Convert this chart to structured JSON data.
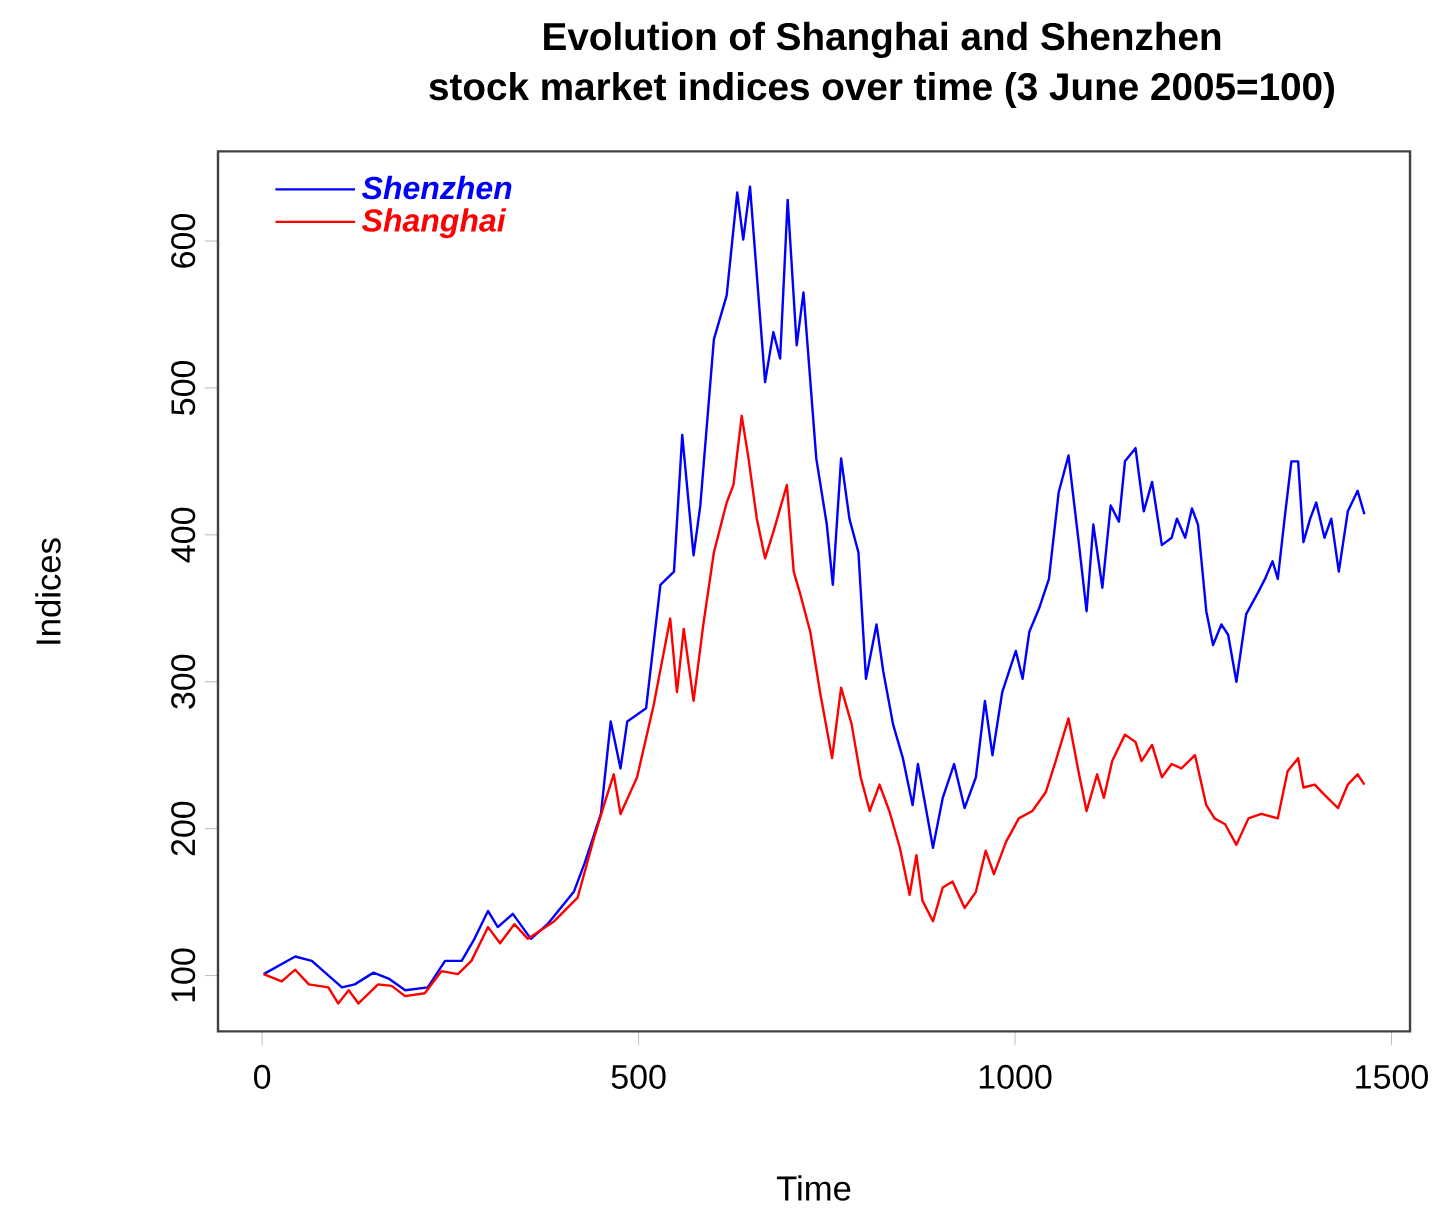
{
  "chart_data": {
    "type": "line",
    "title": "Evolution of Shanghai and Shenzhen",
    "subtitle": "stock market indices over time (3 June 2005=100)",
    "xlabel": "Time",
    "ylabel": "Indices",
    "xlim": [
      -58.6,
      1524.6
    ],
    "ylim": [
      62,
      661
    ],
    "xticks": [
      0,
      500,
      1000,
      1500
    ],
    "yticks": [
      100,
      200,
      300,
      400,
      500,
      600
    ],
    "legend": "top left",
    "marker": "none",
    "line_style": "solid",
    "series": [
      {
        "name": "Shenzhen",
        "color": "#0000ff",
        "x": [
          2,
          44,
          66,
          106,
          123,
          148,
          168,
          190,
          220,
          243,
          265,
          282,
          300,
          313,
          333,
          357,
          379,
          414,
          428,
          450,
          463,
          476,
          485,
          510,
          529,
          547,
          558,
          573,
          582,
          600,
          617,
          631,
          639,
          648,
          668,
          679,
          688,
          698,
          710,
          719,
          736,
          750,
          758,
          769,
          780,
          792,
          802,
          816,
          825,
          838,
          851,
          864,
          871,
          891,
          904,
          919,
          933,
          948,
          960,
          970,
          983,
          1001,
          1010,
          1019,
          1032,
          1045,
          1058,
          1071,
          1085,
          1095,
          1104,
          1116,
          1127,
          1138,
          1146,
          1160,
          1171,
          1182,
          1195,
          1208,
          1215,
          1226,
          1235,
          1243,
          1254,
          1263,
          1274,
          1283,
          1294,
          1307,
          1323,
          1332,
          1342,
          1349,
          1358,
          1367,
          1376,
          1383,
          1392,
          1400,
          1411,
          1420,
          1430,
          1442,
          1455,
          1464
        ],
        "values": [
          101,
          113,
          110,
          92,
          94,
          102,
          98,
          90,
          92,
          110,
          110,
          125,
          144,
          133,
          142,
          125,
          135,
          157,
          176,
          210,
          273,
          241,
          273,
          282,
          366,
          375,
          468,
          386,
          420,
          533,
          563,
          633,
          601,
          637,
          504,
          538,
          520,
          628,
          529,
          565,
          452,
          407,
          366,
          452,
          411,
          388,
          302,
          339,
          307,
          271,
          248,
          216,
          244,
          187,
          221,
          244,
          214,
          235,
          287,
          250,
          293,
          321,
          302,
          334,
          350,
          370,
          429,
          454,
          393,
          348,
          407,
          364,
          420,
          409,
          450,
          459,
          416,
          436,
          393,
          398,
          411,
          398,
          418,
          407,
          348,
          325,
          339,
          332,
          300,
          346,
          361,
          370,
          382,
          370,
          411,
          450,
          450,
          395,
          411,
          422,
          398,
          411,
          375,
          416,
          430,
          414
        ]
      },
      {
        "name": "Shanghai",
        "color": "#ff0000",
        "x": [
          2,
          26,
          44,
          62,
          88,
          101,
          115,
          128,
          154,
          172,
          190,
          216,
          238,
          260,
          278,
          300,
          316,
          335,
          353,
          388,
          419,
          441,
          457,
          467,
          476,
          498,
          520,
          542,
          551,
          560,
          573,
          586,
          600,
          617,
          626,
          637,
          646,
          657,
          668,
          679,
          697,
          706,
          714,
          728,
          741,
          757,
          769,
          783,
          795,
          807,
          820,
          833,
          847,
          860,
          869,
          877,
          891,
          904,
          917,
          933,
          948,
          961,
          972,
          988,
          1005,
          1023,
          1041,
          1054,
          1071,
          1085,
          1095,
          1109,
          1118,
          1129,
          1146,
          1160,
          1168,
          1182,
          1195,
          1208,
          1221,
          1239,
          1254,
          1265,
          1279,
          1294,
          1310,
          1327,
          1349,
          1362,
          1376,
          1383,
          1398,
          1411,
          1429,
          1442,
          1455,
          1464
        ],
        "values": [
          101,
          96,
          104,
          94,
          92,
          81,
          90,
          81,
          94,
          93,
          86,
          88,
          103,
          101,
          110,
          133,
          122,
          135,
          125,
          137,
          153,
          194,
          221,
          237,
          210,
          235,
          284,
          343,
          293,
          336,
          287,
          339,
          388,
          422,
          434,
          481,
          452,
          411,
          384,
          402,
          434,
          375,
          361,
          334,
          293,
          248,
          296,
          271,
          235,
          212,
          230,
          212,
          187,
          155,
          182,
          151,
          137,
          160,
          164,
          146,
          157,
          185,
          169,
          191,
          207,
          212,
          225,
          246,
          275,
          237,
          212,
          237,
          221,
          246,
          264,
          259,
          246,
          257,
          235,
          244,
          241,
          250,
          216,
          207,
          203,
          189,
          207,
          210,
          207,
          239,
          248,
          228,
          230,
          223,
          214,
          230,
          237,
          230
        ]
      }
    ]
  }
}
